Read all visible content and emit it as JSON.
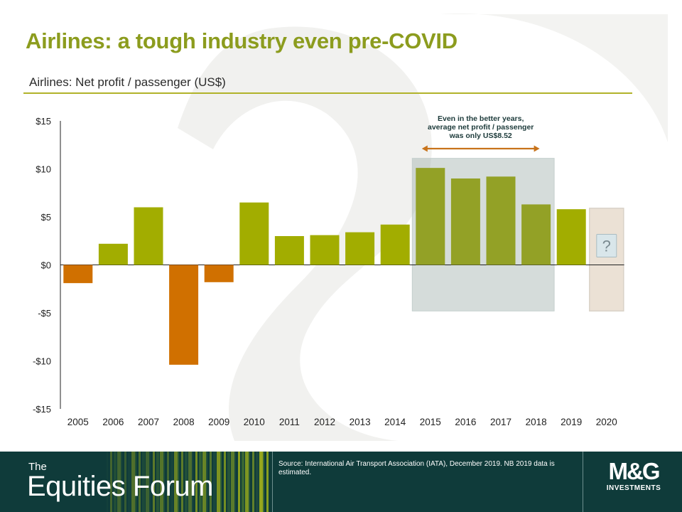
{
  "page": {
    "title": "Airlines: a tough industry even pre-COVID",
    "subtitle": "Airlines: Net profit / passenger (US$)"
  },
  "chart_data": {
    "type": "bar",
    "title": "Airlines: Net profit / passenger (US$)",
    "categories": [
      "2005",
      "2006",
      "2007",
      "2008",
      "2009",
      "2010",
      "2011",
      "2012",
      "2013",
      "2014",
      "2015",
      "2016",
      "2017",
      "2018",
      "2019",
      "2020"
    ],
    "values": [
      -1.9,
      2.2,
      6.0,
      -10.4,
      -1.8,
      6.5,
      3.0,
      3.1,
      3.4,
      4.2,
      10.1,
      9.0,
      9.2,
      6.3,
      5.8,
      null
    ],
    "ylim": [
      -15,
      15
    ],
    "yticks": [
      15,
      10,
      5,
      0,
      -5,
      -10,
      -15
    ],
    "ytick_labels": [
      "$15",
      "$10",
      "$5",
      "$0",
      "-$5",
      "-$10",
      "-$15"
    ],
    "colors": {
      "positive": "#a2ad00",
      "negative": "#d07000",
      "highlight_positive": "#93a126"
    },
    "highlight": {
      "from": "2015",
      "to": "2018",
      "annotation": [
        "Even in the better years,",
        "average net profit / passenger",
        "was only US$8.52"
      ]
    },
    "unknown": {
      "category": "2020",
      "label": "?"
    }
  },
  "footer": {
    "brand_prefix": "The",
    "brand_name": "Equities Forum",
    "source": "Source: International  Air Transport Association (IATA), December  2019. NB 2019 data is estimated.",
    "logo_main": "M&G",
    "logo_sub": "INVESTMENTS"
  }
}
